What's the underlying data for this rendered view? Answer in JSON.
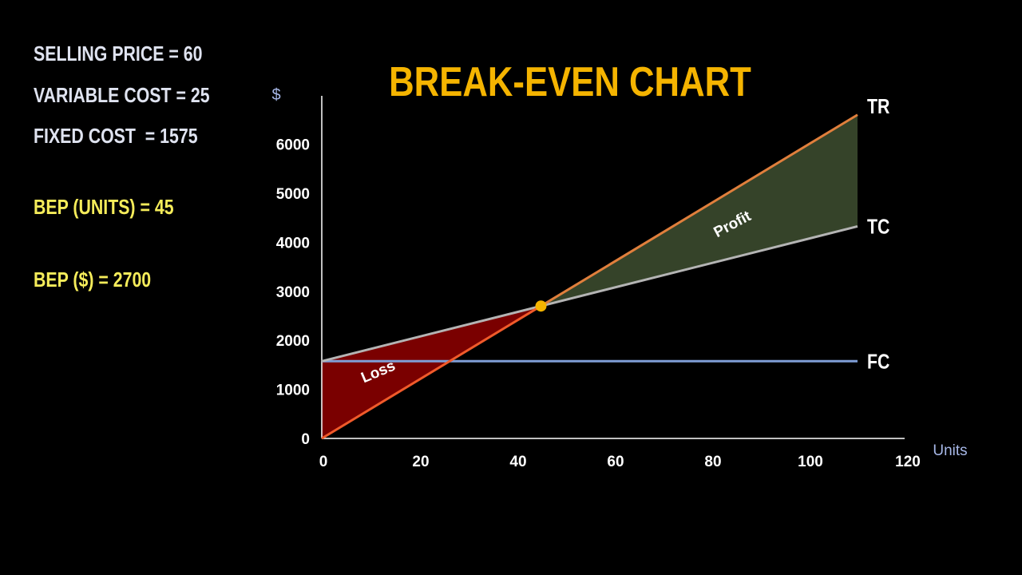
{
  "info": {
    "selling_price": "SELLING PRICE = 60",
    "variable_cost": "VARIABLE COST = 25",
    "fixed_cost": "FIXED COST  = 1575",
    "bep_units": "BEP (UNITS) = 45",
    "bep_dollars": "BEP ($) = 2700"
  },
  "colors": {
    "background": "#000000",
    "title": "#f5b400",
    "tr_line": "#e07f3c",
    "tr_line_loss": "#f05a2a",
    "tc_line": "#b4b4b4",
    "fc_line": "#7f9ed6",
    "profit_fill": "#354329",
    "loss_fill": "#7a0000",
    "bep_point": "#f5b400",
    "info_white": "#dfe3f0",
    "info_yellow": "#f5ec5a",
    "units_label": "#a7b8e8"
  },
  "chart_data": {
    "type": "line",
    "title": "BREAK-EVEN CHART",
    "xlabel": "Units",
    "ylabel": "$",
    "xlim": [
      0,
      120
    ],
    "ylim": [
      0,
      7000
    ],
    "x_ticks": [
      0,
      20,
      40,
      60,
      80,
      100,
      120
    ],
    "y_ticks": [
      0,
      1000,
      2000,
      3000,
      4000,
      5000,
      6000
    ],
    "series": [
      {
        "name": "TR",
        "x": [
          0,
          110
        ],
        "y": [
          0,
          6600
        ]
      },
      {
        "name": "TC",
        "x": [
          0,
          110
        ],
        "y": [
          1575,
          4325
        ]
      },
      {
        "name": "FC",
        "x": [
          0,
          110
        ],
        "y": [
          1575,
          1575
        ]
      }
    ],
    "break_even_point": {
      "x": 45,
      "y": 2700
    },
    "regions": [
      {
        "label": "Profit"
      },
      {
        "label": "Loss"
      }
    ],
    "grid": false
  }
}
